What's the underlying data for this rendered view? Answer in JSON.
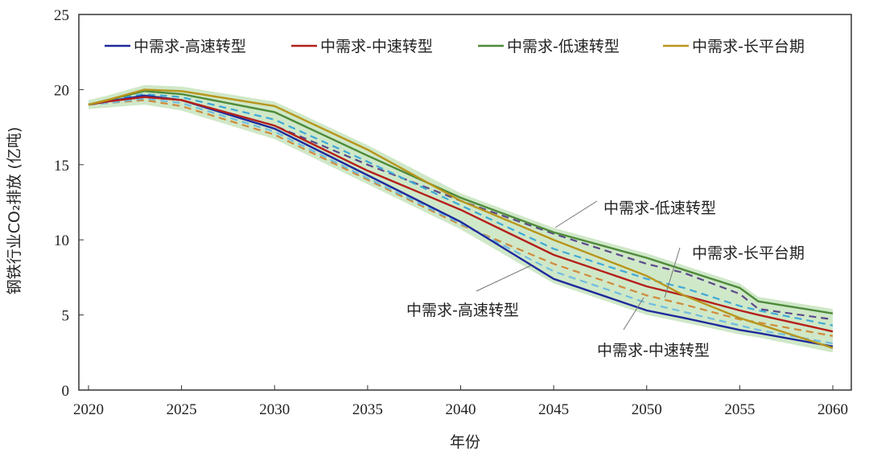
{
  "chart_data": {
    "type": "line",
    "title": "",
    "xlabel": "年份",
    "ylabel": "钢铁行业CO₂排放 (亿吨)",
    "xlim": [
      2020,
      2060
    ],
    "ylim": [
      0,
      25
    ],
    "xticks": [
      2020,
      2025,
      2030,
      2035,
      2040,
      2045,
      2050,
      2055,
      2060
    ],
    "yticks": [
      0,
      5,
      10,
      15,
      20,
      25
    ],
    "grid": false,
    "legend_position": "top",
    "x": [
      2020,
      2021,
      2023,
      2025,
      2030,
      2035,
      2040,
      2045,
      2050,
      2052,
      2055,
      2056,
      2060
    ],
    "series": [
      {
        "name": "中需求-高速转型",
        "color": "#1f2a9c",
        "style": "solid",
        "values": [
          19.0,
          19.2,
          19.6,
          19.3,
          17.4,
          14.3,
          11.2,
          7.4,
          5.3,
          4.8,
          4.0,
          3.8,
          2.9
        ]
      },
      {
        "name": "中需求-中速转型",
        "color": "#b5201c",
        "style": "solid",
        "values": [
          19.0,
          19.2,
          19.5,
          19.3,
          17.6,
          14.6,
          12.0,
          9.0,
          6.9,
          6.3,
          5.3,
          5.0,
          3.9
        ]
      },
      {
        "name": "中需求-低速转型",
        "color": "#4e8a3a",
        "style": "solid",
        "values": [
          19.0,
          19.3,
          19.9,
          19.7,
          18.5,
          15.6,
          12.8,
          10.5,
          8.8,
          8.0,
          6.8,
          5.9,
          5.1
        ]
      },
      {
        "name": "中需求-长平台期",
        "color": "#b8951c",
        "style": "solid",
        "values": [
          19.0,
          19.3,
          20.0,
          19.9,
          18.9,
          16.0,
          12.6,
          10.0,
          7.6,
          6.3,
          4.8,
          4.4,
          2.8
        ]
      },
      {
        "color": "#5a4a8a",
        "style": "dashed",
        "values": [
          19.0,
          19.2,
          19.5,
          19.3,
          17.6,
          15.0,
          12.6,
          10.4,
          8.4,
          7.8,
          6.4,
          5.4,
          4.7
        ]
      },
      {
        "color": "#3fa9d8",
        "style": "dashed",
        "values": [
          19.0,
          19.3,
          19.7,
          19.5,
          18.0,
          15.2,
          12.3,
          9.4,
          7.4,
          6.8,
          5.6,
          5.3,
          4.3
        ]
      },
      {
        "color": "#d08a3a",
        "style": "dashed",
        "values": [
          19.0,
          19.1,
          19.3,
          18.9,
          17.0,
          14.0,
          11.0,
          8.4,
          6.3,
          5.7,
          4.7,
          4.5,
          3.6
        ]
      },
      {
        "color": "#6fbde0",
        "style": "dashed",
        "values": [
          19.0,
          19.1,
          19.4,
          19.1,
          17.2,
          14.1,
          11.1,
          7.9,
          5.8,
          5.2,
          4.3,
          4.0,
          3.1
        ]
      }
    ],
    "band_color": "#a8d69a",
    "annotations": [
      {
        "text": "中需求-低速转型"
      },
      {
        "text": "中需求-长平台期"
      },
      {
        "text": "中需求-高速转型"
      },
      {
        "text": "中需求-中速转型"
      }
    ]
  }
}
